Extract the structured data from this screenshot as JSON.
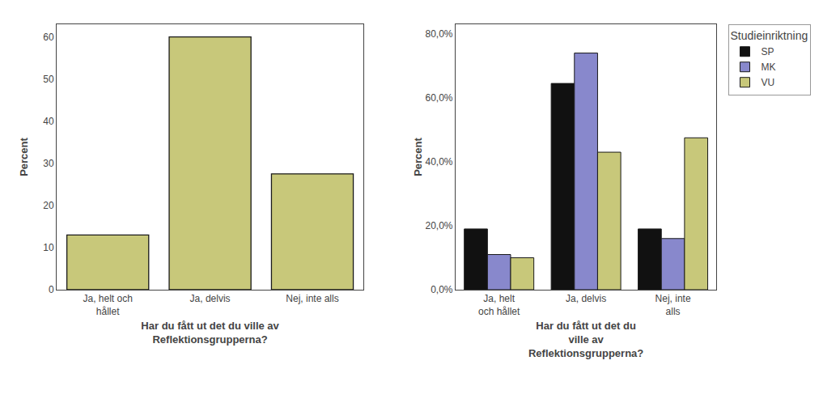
{
  "chart_data": [
    {
      "type": "bar",
      "categories": [
        "Ja, helt och\nhållet",
        "Ja, delvis",
        "Nej, inte alls"
      ],
      "values": [
        13.0,
        60.0,
        27.5
      ],
      "color": "#C8C87A",
      "ylabel": "Percent",
      "xlabel": "Har du fått ut det du ville av\nReflektionsgrupperna?",
      "ylim": [
        0,
        63
      ],
      "yticks": [
        0,
        10,
        20,
        30,
        40,
        50,
        60
      ],
      "grid": false
    },
    {
      "type": "bar",
      "categories": [
        "Ja, helt\noch hållet",
        "Ja, delvis",
        "Nej, inte\nalls"
      ],
      "series": [
        {
          "name": "SP",
          "color": "#111111",
          "values": [
            19.0,
            64.5,
            19.0
          ]
        },
        {
          "name": "MK",
          "color": "#8888CC",
          "values": [
            11.0,
            74.0,
            16.0
          ]
        },
        {
          "name": "VU",
          "color": "#C8C87A",
          "values": [
            10.0,
            43.0,
            47.5
          ]
        }
      ],
      "ylabel": "Percent",
      "xlabel": "Har du fått ut det du\nville av\nReflektionsgrupperna?",
      "ylim": [
        0,
        83
      ],
      "yticks": [
        {
          "value": 0.0,
          "label": "0,0%"
        },
        {
          "value": 20.0,
          "label": "20,0%"
        },
        {
          "value": 40.0,
          "label": "40,0%"
        },
        {
          "value": 60.0,
          "label": "60,0%"
        },
        {
          "value": 80.0,
          "label": "80,0%"
        }
      ],
      "legend_title": "Studieinriktning",
      "legend": "upper right",
      "grid": false
    }
  ]
}
